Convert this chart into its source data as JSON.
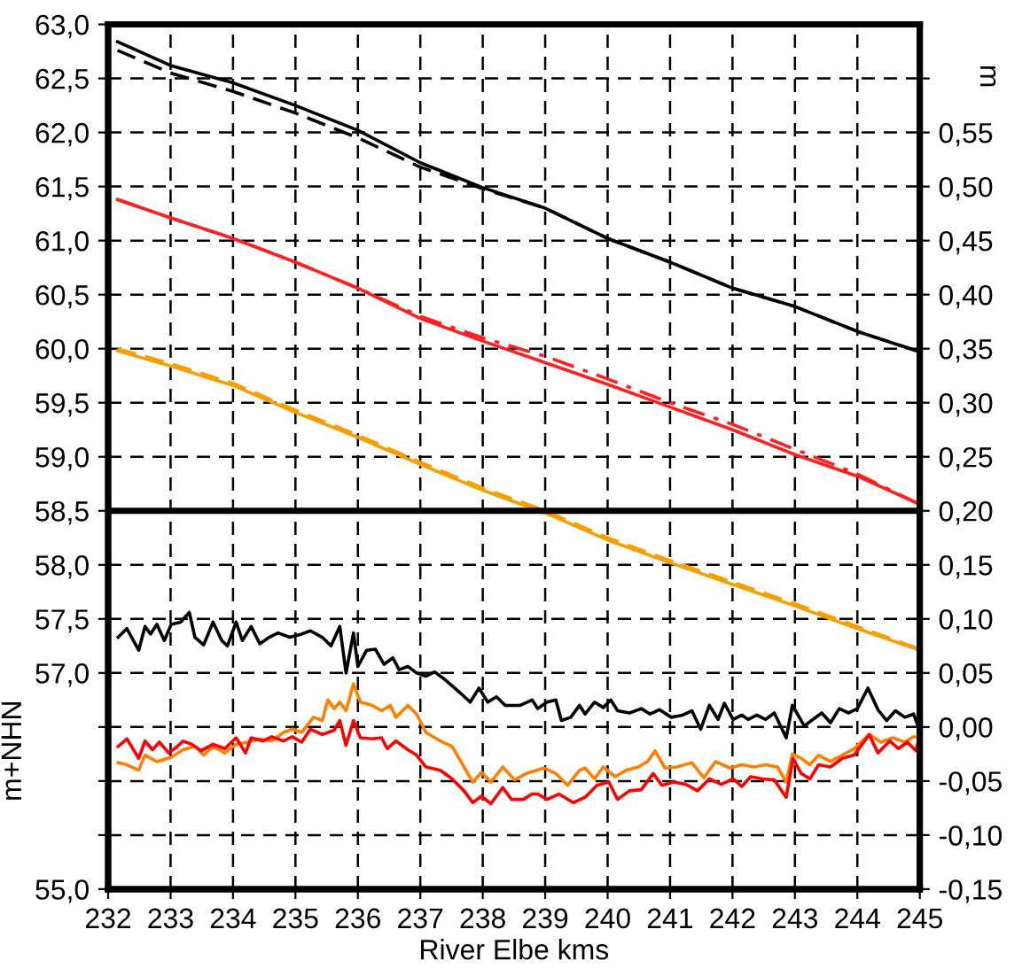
{
  "chart_data": {
    "type": "line",
    "xlabel": "River Elbe kms",
    "ylabel": "m+NHN",
    "y2label": "m",
    "xlim": [
      232,
      245
    ],
    "xticks": [
      232,
      233,
      234,
      235,
      236,
      237,
      238,
      239,
      240,
      241,
      242,
      243,
      244,
      245
    ],
    "ylim": [
      55,
      63
    ],
    "yticks": [
      {
        "value": 55,
        "label": "55,0"
      },
      {
        "value": 55.5,
        "label": null
      },
      {
        "value": 56,
        "label": null
      },
      {
        "value": 56.5,
        "label": null
      },
      {
        "value": 57,
        "label": "57,0"
      },
      {
        "value": 57.5,
        "label": "57,5"
      },
      {
        "value": 58,
        "label": "58,0"
      },
      {
        "value": 58.5,
        "label": "58,5"
      },
      {
        "value": 59,
        "label": "59,0"
      },
      {
        "value": 59.5,
        "label": "59,5"
      },
      {
        "value": 60,
        "label": "60,0"
      },
      {
        "value": 60.5,
        "label": "60,5"
      },
      {
        "value": 61,
        "label": "61,0"
      },
      {
        "value": 61.5,
        "label": "61,5"
      },
      {
        "value": 62,
        "label": "62,0"
      },
      {
        "value": 62.5,
        "label": "62,5"
      },
      {
        "value": 63,
        "label": "63,0"
      }
    ],
    "y2lim": [
      -0.15,
      0.65
    ],
    "y2ticks": [
      {
        "value": -0.15,
        "label": "-0,15"
      },
      {
        "value": -0.1,
        "label": "-0,10"
      },
      {
        "value": -0.05,
        "label": "-0,05"
      },
      {
        "value": 0,
        "label": "0,00"
      },
      {
        "value": 0.05,
        "label": "0,05"
      },
      {
        "value": 0.1,
        "label": "0,10"
      },
      {
        "value": 0.15,
        "label": "0,15"
      },
      {
        "value": 0.2,
        "label": "0,20"
      },
      {
        "value": 0.25,
        "label": "0,25"
      },
      {
        "value": 0.3,
        "label": "0,30"
      },
      {
        "value": 0.35,
        "label": "0,35"
      },
      {
        "value": 0.4,
        "label": "0,40"
      },
      {
        "value": 0.45,
        "label": "0,45"
      },
      {
        "value": 0.5,
        "label": "0,50"
      },
      {
        "value": 0.55,
        "label": "0,55"
      },
      {
        "value": 0.6,
        "label": null
      }
    ],
    "grid": true,
    "ref_lines": [
      {
        "axis": "y",
        "value": 58.5,
        "color": "#000000",
        "line_style": "solid"
      }
    ],
    "series": [
      {
        "color": "#000000",
        "line_style": "solid",
        "x": [
          232.15,
          233,
          234,
          235,
          236,
          237,
          238,
          239,
          240,
          241,
          242,
          243,
          244,
          245
        ],
        "values": [
          62.84,
          62.62,
          62.46,
          62.25,
          62.02,
          61.72,
          61.49,
          61.3,
          61.02,
          60.8,
          60.56,
          60.39,
          60.16,
          59.97
        ]
      },
      {
        "color": "#000000",
        "line_style": "dashed",
        "x": [
          232.15,
          233,
          234,
          235,
          236,
          237,
          238,
          239,
          240,
          241,
          242,
          243,
          244,
          245
        ],
        "values": [
          62.76,
          62.55,
          62.38,
          62.18,
          61.95,
          61.68,
          61.48,
          61.3,
          61.02,
          60.8,
          60.56,
          60.39,
          60.16,
          59.97
        ]
      },
      {
        "color": "#ff2020",
        "line_style": "solid",
        "x": [
          232.15,
          233,
          234,
          235,
          236,
          237,
          238,
          239,
          240,
          241,
          242,
          243,
          244,
          245
        ],
        "values": [
          61.38,
          61.21,
          61.02,
          60.8,
          60.56,
          60.28,
          60.07,
          59.87,
          59.67,
          59.46,
          59.25,
          59.02,
          58.82,
          58.56
        ]
      },
      {
        "color": "#ff2020",
        "line_style": "dashdot",
        "x": [
          232.15,
          233,
          234,
          235,
          236,
          237,
          238,
          239,
          240,
          241,
          242,
          243,
          244,
          245
        ],
        "values": [
          61.38,
          61.21,
          61.02,
          60.8,
          60.56,
          60.3,
          60.1,
          59.93,
          59.72,
          59.5,
          59.3,
          59.07,
          58.84,
          58.56
        ]
      },
      {
        "color": "#f5a000",
        "line_style": "solid",
        "x": [
          232.15,
          233,
          234,
          235,
          236,
          237,
          238,
          239,
          240,
          241,
          242,
          243,
          244,
          245
        ],
        "values": [
          59.98,
          59.84,
          59.66,
          59.41,
          59.18,
          58.93,
          58.69,
          58.48,
          58.23,
          58.02,
          57.82,
          57.62,
          57.41,
          57.21
        ]
      },
      {
        "color": "#f5a000",
        "line_style": "dashed",
        "x": [
          232.15,
          233,
          234,
          235,
          236,
          237,
          238,
          239,
          240,
          241,
          242,
          243,
          244,
          245
        ],
        "values": [
          60.0,
          59.86,
          59.68,
          59.43,
          59.2,
          58.95,
          58.71,
          58.5,
          58.25,
          58.04,
          57.84,
          57.64,
          57.43,
          57.22
        ]
      },
      {
        "color": "#000000",
        "line_style": "solid",
        "axis": "y2",
        "x": [
          232.16,
          232.3,
          232.49,
          232.59,
          232.68,
          232.78,
          232.9,
          233.01,
          233.16,
          233.3,
          233.39,
          233.53,
          233.68,
          233.82,
          233.91,
          234.05,
          234.15,
          234.29,
          234.43,
          234.58,
          234.72,
          234.91,
          235.1,
          235.24,
          235.43,
          235.57,
          235.71,
          235.81,
          235.93,
          236.0,
          236.14,
          236.28,
          236.42,
          236.56,
          236.66,
          236.8,
          236.94,
          237.09,
          237.23,
          237.37,
          237.51,
          237.65,
          237.8,
          237.94,
          238.08,
          238.22,
          238.36,
          238.6,
          238.79,
          238.88,
          239.03,
          239.17,
          239.26,
          239.41,
          239.55,
          239.64,
          239.79,
          239.93,
          240.05,
          240.16,
          240.35,
          240.54,
          240.68,
          240.83,
          241.02,
          241.2,
          241.35,
          241.49,
          241.63,
          241.77,
          241.87,
          242.01,
          242.15,
          242.25,
          242.39,
          242.53,
          242.67,
          242.86,
          242.96,
          243.15,
          243.29,
          243.43,
          243.57,
          243.71,
          243.86,
          244.0,
          244.17,
          244.33,
          244.47,
          244.61,
          244.76,
          244.9,
          244.99
        ],
        "values": [
          0.083,
          0.091,
          0.071,
          0.093,
          0.086,
          0.095,
          0.08,
          0.095,
          0.097,
          0.106,
          0.083,
          0.076,
          0.097,
          0.08,
          0.075,
          0.097,
          0.08,
          0.093,
          0.077,
          0.083,
          0.087,
          0.083,
          0.086,
          0.089,
          0.083,
          0.075,
          0.093,
          0.05,
          0.087,
          0.056,
          0.071,
          0.072,
          0.058,
          0.064,
          0.053,
          0.056,
          0.05,
          0.047,
          0.051,
          0.045,
          0.038,
          0.031,
          0.023,
          0.036,
          0.023,
          0.028,
          0.02,
          0.02,
          0.025,
          0.017,
          0.023,
          0.025,
          0.006,
          0.009,
          0.02,
          0.012,
          0.023,
          0.018,
          0.025,
          0.015,
          0.013,
          0.017,
          0.012,
          0.016,
          0.009,
          0.011,
          0.015,
          -0.002,
          0.02,
          0.007,
          0.022,
          0.007,
          0.011,
          0.007,
          0.011,
          0.007,
          0.013,
          -0.01,
          0.02,
          0.001,
          0.007,
          0.013,
          0.004,
          0.017,
          0.013,
          0.017,
          0.036,
          0.016,
          0.006,
          0.015,
          0.009,
          0.012,
          -0.002
        ]
      },
      {
        "color": "#ff7f00",
        "line_style": "solid",
        "axis": "y2",
        "x": [
          232.16,
          232.3,
          232.49,
          232.59,
          232.78,
          233.01,
          233.2,
          233.39,
          233.53,
          233.68,
          233.87,
          234.05,
          234.24,
          234.43,
          234.62,
          234.81,
          234.95,
          235.1,
          235.29,
          235.43,
          235.52,
          235.62,
          235.71,
          235.81,
          235.93,
          236.04,
          236.23,
          236.38,
          236.52,
          236.61,
          236.8,
          236.94,
          237.09,
          237.32,
          237.51,
          237.7,
          237.84,
          237.98,
          238.13,
          238.32,
          238.51,
          238.7,
          238.98,
          239.17,
          239.36,
          239.55,
          239.64,
          239.79,
          239.93,
          240.12,
          240.3,
          240.49,
          240.64,
          240.76,
          240.92,
          241.11,
          241.35,
          241.54,
          241.73,
          241.96,
          242.15,
          242.34,
          242.53,
          242.72,
          242.86,
          242.96,
          243.1,
          243.24,
          243.38,
          243.57,
          243.76,
          243.95,
          244.19,
          244.38,
          244.57,
          244.76,
          244.9,
          244.99
        ],
        "values": [
          -0.033,
          -0.035,
          -0.04,
          -0.026,
          -0.032,
          -0.028,
          -0.021,
          -0.018,
          -0.026,
          -0.018,
          -0.024,
          -0.016,
          -0.014,
          -0.011,
          -0.013,
          -0.005,
          -0.002,
          -0.005,
          0.009,
          0.006,
          0.025,
          0.017,
          0.023,
          0.015,
          0.04,
          0.023,
          0.02,
          0.015,
          0.02,
          0.009,
          0.02,
          0.012,
          -0.005,
          -0.013,
          -0.018,
          -0.037,
          -0.051,
          -0.042,
          -0.051,
          -0.037,
          -0.049,
          -0.043,
          -0.038,
          -0.043,
          -0.054,
          -0.04,
          -0.038,
          -0.048,
          -0.037,
          -0.046,
          -0.04,
          -0.037,
          -0.032,
          -0.022,
          -0.038,
          -0.037,
          -0.033,
          -0.047,
          -0.032,
          -0.038,
          -0.035,
          -0.037,
          -0.035,
          -0.037,
          -0.051,
          -0.025,
          -0.029,
          -0.035,
          -0.026,
          -0.032,
          -0.026,
          -0.02,
          -0.007,
          -0.014,
          -0.01,
          -0.014,
          -0.009,
          -0.01
        ]
      },
      {
        "color": "#ff0000",
        "line_style": "solid",
        "axis": "y2",
        "x": [
          232.16,
          232.3,
          232.49,
          232.59,
          232.71,
          232.82,
          232.97,
          233.11,
          233.2,
          233.34,
          233.49,
          233.68,
          233.87,
          234.05,
          234.2,
          234.29,
          234.48,
          234.62,
          234.81,
          234.95,
          235.1,
          235.24,
          235.43,
          235.62,
          235.71,
          235.81,
          235.93,
          236.04,
          236.23,
          236.38,
          236.47,
          236.61,
          236.8,
          236.94,
          237.09,
          237.32,
          237.51,
          237.7,
          237.84,
          237.98,
          238.13,
          238.32,
          238.46,
          238.65,
          238.79,
          238.88,
          239.03,
          239.22,
          239.45,
          239.64,
          239.83,
          240.02,
          240.16,
          240.35,
          240.54,
          240.73,
          240.87,
          241.06,
          241.25,
          241.44,
          241.63,
          241.82,
          242.01,
          242.15,
          242.29,
          242.48,
          242.67,
          242.86,
          242.97,
          243.1,
          243.24,
          243.38,
          243.57,
          243.76,
          243.95,
          244.19,
          244.33,
          244.52,
          244.66,
          244.8,
          244.94,
          245.0
        ],
        "values": [
          -0.018,
          -0.011,
          -0.029,
          -0.013,
          -0.021,
          -0.014,
          -0.024,
          -0.018,
          -0.013,
          -0.016,
          -0.022,
          -0.016,
          -0.02,
          -0.01,
          -0.024,
          -0.01,
          -0.013,
          -0.009,
          -0.013,
          -0.009,
          -0.014,
          -0.002,
          -0.007,
          -0.003,
          0.006,
          -0.017,
          0.006,
          -0.01,
          -0.011,
          -0.01,
          -0.02,
          -0.013,
          -0.021,
          -0.026,
          -0.037,
          -0.04,
          -0.048,
          -0.059,
          -0.07,
          -0.064,
          -0.071,
          -0.056,
          -0.067,
          -0.067,
          -0.062,
          -0.062,
          -0.067,
          -0.062,
          -0.07,
          -0.065,
          -0.054,
          -0.051,
          -0.067,
          -0.059,
          -0.058,
          -0.043,
          -0.054,
          -0.051,
          -0.053,
          -0.059,
          -0.048,
          -0.053,
          -0.048,
          -0.055,
          -0.046,
          -0.048,
          -0.049,
          -0.065,
          -0.029,
          -0.043,
          -0.048,
          -0.035,
          -0.037,
          -0.029,
          -0.026,
          -0.007,
          -0.024,
          -0.013,
          -0.02,
          -0.014,
          -0.022,
          -0.007
        ]
      }
    ]
  }
}
